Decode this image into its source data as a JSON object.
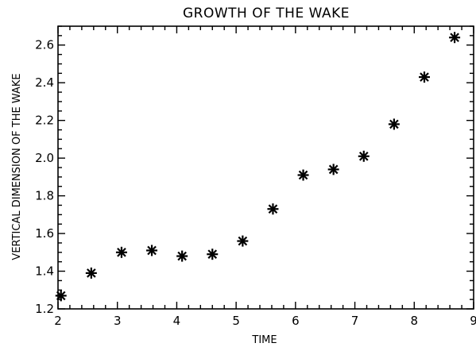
{
  "chart_data": {
    "type": "scatter",
    "title": "GROWTH OF THE WAKE",
    "xlabel": "TIME",
    "ylabel": "VERTICAL DIMENSION OF THE WAKE",
    "xlim": [
      2,
      9
    ],
    "ylim": [
      1.2,
      2.7
    ],
    "xticks": [
      2,
      3,
      4,
      5,
      6,
      7,
      8,
      9
    ],
    "yticks": [
      1.2,
      1.4,
      1.6,
      1.8,
      2.0,
      2.2,
      2.4,
      2.6
    ],
    "xtick_labels": [
      "2",
      "3",
      "4",
      "5",
      "6",
      "7",
      "8",
      "9"
    ],
    "ytick_labels": [
      "1.2",
      "1.4",
      "1.6",
      "1.8",
      "2.0",
      "2.2",
      "2.4",
      "2.6"
    ],
    "grid": false,
    "marker": "asterisk",
    "marker_color": "#000000",
    "series": [
      {
        "x": [
          2.05,
          2.56,
          3.07,
          3.58,
          4.09,
          4.6,
          5.11,
          5.62,
          6.13,
          6.64,
          7.15,
          7.66,
          8.17,
          8.68
        ],
        "y": [
          1.27,
          1.39,
          1.5,
          1.51,
          1.48,
          1.49,
          1.56,
          1.73,
          1.91,
          1.94,
          2.01,
          2.18,
          2.43,
          2.64
        ]
      }
    ]
  }
}
